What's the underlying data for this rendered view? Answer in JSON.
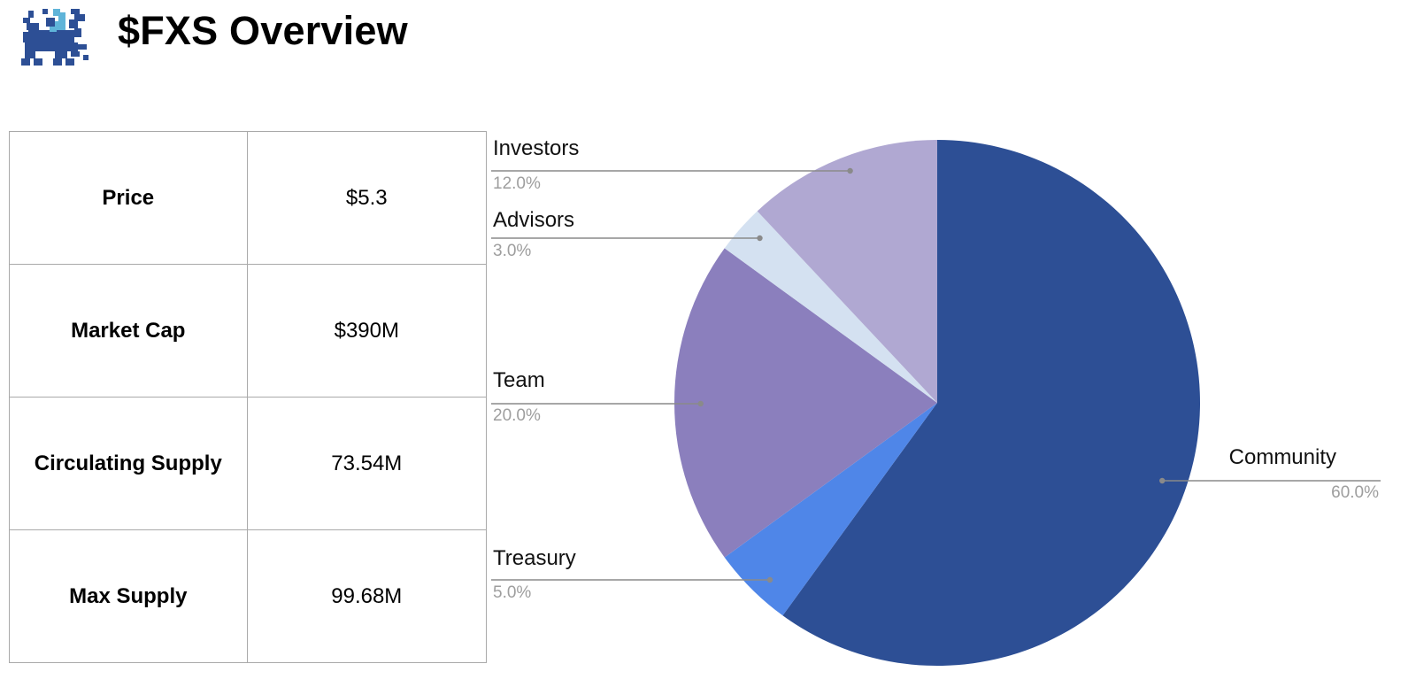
{
  "header": {
    "title": "$FXS Overview",
    "logo_icon": "pixel-griffin-logo-icon"
  },
  "stats": {
    "rows": [
      {
        "label": "Price",
        "value": "$5.3"
      },
      {
        "label": "Market Cap",
        "value": "$390M"
      },
      {
        "label": "Circulating Supply",
        "value": "73.54M"
      },
      {
        "label": "Max Supply",
        "value": "99.68M"
      }
    ]
  },
  "chart_data": {
    "type": "pie",
    "title": "",
    "start_angle_deg": 0,
    "direction": "clockwise",
    "slices": [
      {
        "label": "Community",
        "value": 60.0,
        "pct_label": "60.0%",
        "color": "#2d4f95"
      },
      {
        "label": "Treasury",
        "value": 5.0,
        "pct_label": "5.0%",
        "color": "#4f86e8"
      },
      {
        "label": "Team",
        "value": 20.0,
        "pct_label": "20.0%",
        "color": "#8b7fbd"
      },
      {
        "label": "Advisors",
        "value": 3.0,
        "pct_label": "3.0%",
        "color": "#d4e1f1"
      },
      {
        "label": "Investors",
        "value": 12.0,
        "pct_label": "12.0%",
        "color": "#b0a8d2"
      }
    ],
    "leader_line_color": "#8a8a8a"
  }
}
